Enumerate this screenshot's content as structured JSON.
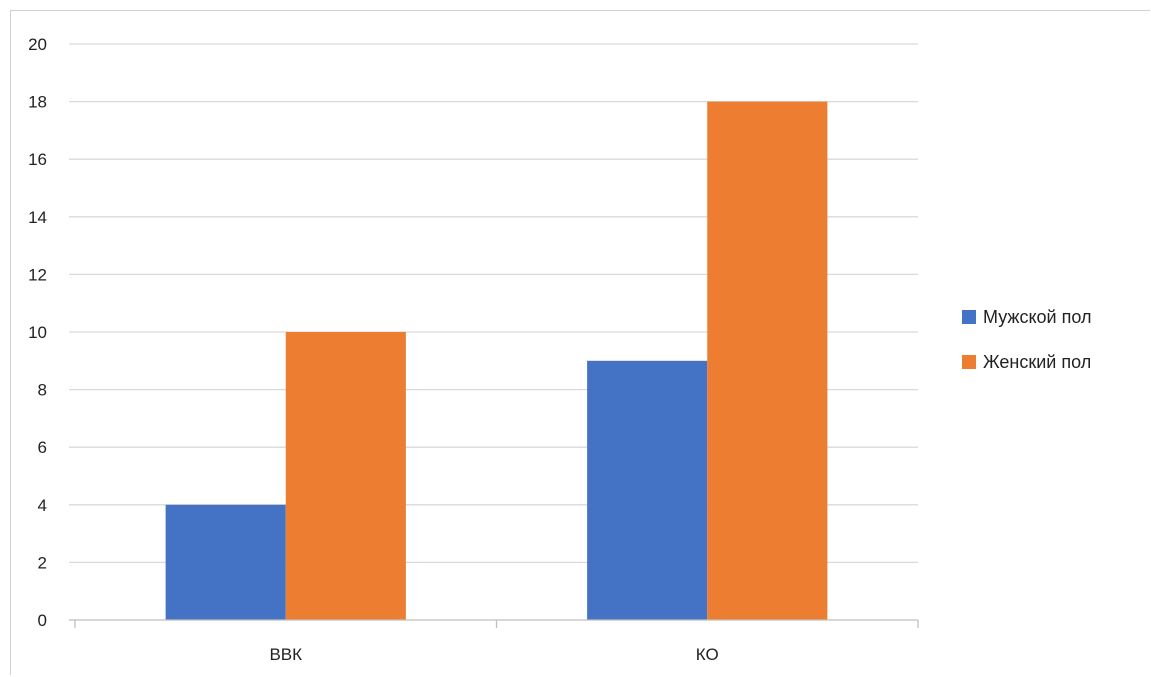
{
  "chart_data": {
    "type": "bar",
    "title": "",
    "xlabel": "",
    "ylabel": "",
    "categories": [
      "ВВК",
      "КО"
    ],
    "series": [
      {
        "name": "Мужской пол",
        "values": [
          4,
          9
        ],
        "color": "#4472C4"
      },
      {
        "name": "Женский пол",
        "values": [
          10,
          18
        ],
        "color": "#ED7D31"
      }
    ],
    "ylim": [
      0,
      20
    ],
    "yticks": [
      0,
      2,
      4,
      6,
      8,
      10,
      12,
      14,
      16,
      18,
      20
    ],
    "grid": true,
    "legend_position": "right"
  }
}
